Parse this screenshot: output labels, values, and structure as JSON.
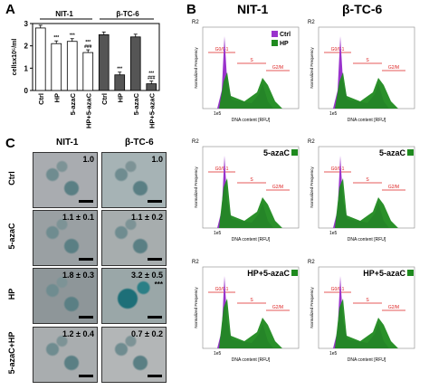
{
  "panel_labels": {
    "a": "A",
    "b": "B",
    "c": "C"
  },
  "panel_a": {
    "group_headers": [
      "NIT-1",
      "β-TC-6"
    ],
    "ylabel": "cellsx10⁵/ml",
    "yticks": [
      "0",
      "1",
      "2",
      "3"
    ],
    "categories": [
      "Ctrl",
      "HP",
      "5-azaC",
      "HP+5-azaC",
      "Ctrl",
      "HP",
      "5-azaC",
      "HP+5-azaC"
    ],
    "colors": {
      "nit1": "#ffffff",
      "btc6": "#555555"
    }
  },
  "chart_data": {
    "type": "bar",
    "title": "",
    "xlabel": "",
    "ylabel": "cellsx10⁵/ml",
    "ylim": [
      0,
      3
    ],
    "categories": [
      "Ctrl",
      "HP",
      "5-azaC",
      "HP+5-azaC",
      "Ctrl",
      "HP",
      "5-azaC",
      "HP+5-azaC"
    ],
    "groups": [
      "NIT-1",
      "NIT-1",
      "NIT-1",
      "NIT-1",
      "β-TC-6",
      "β-TC-6",
      "β-TC-6",
      "β-TC-6"
    ],
    "values": [
      2.8,
      2.1,
      2.2,
      1.7,
      2.5,
      0.7,
      2.4,
      0.3
    ],
    "annotations": [
      "",
      "***",
      "***",
      "***\n###",
      "",
      "***",
      "",
      "***\n###"
    ]
  },
  "panel_b": {
    "col_headers": [
      "NIT-1",
      "β-TC-6"
    ],
    "legend": [
      {
        "name": "Ctrl",
        "color": "#9933cc"
      },
      {
        "name": "HP",
        "color": "#1f8a1f"
      }
    ],
    "row_titles": [
      "",
      "5-azaC",
      "HP+5-azaC"
    ],
    "region_label": "R2",
    "phase_labels": [
      "G0/G1",
      "S",
      "G2/M"
    ],
    "xlabel": "DNA content [RFU]",
    "ylabel": "Normalized Frequency",
    "xtick": "1e5"
  },
  "panel_c": {
    "col_headers": [
      "NIT-1",
      "β-TC-6"
    ],
    "rows": [
      {
        "label": "Ctrl",
        "values": [
          "1.0",
          "1.0"
        ],
        "stars": [
          "",
          ""
        ]
      },
      {
        "label": "5-azaC",
        "values": [
          "1.1 ± 0.1",
          "1.1 ± 0.2"
        ],
        "stars": [
          "",
          ""
        ]
      },
      {
        "label": "HP",
        "values": [
          "1.8 ± 0.3",
          "3.2 ± 0.5"
        ],
        "stars": [
          "",
          "***"
        ]
      },
      {
        "label": "5-azaC+HP",
        "values": [
          "1.2 ± 0.4",
          "0.7 ± 0.2"
        ],
        "stars": [
          "",
          ""
        ]
      }
    ]
  }
}
